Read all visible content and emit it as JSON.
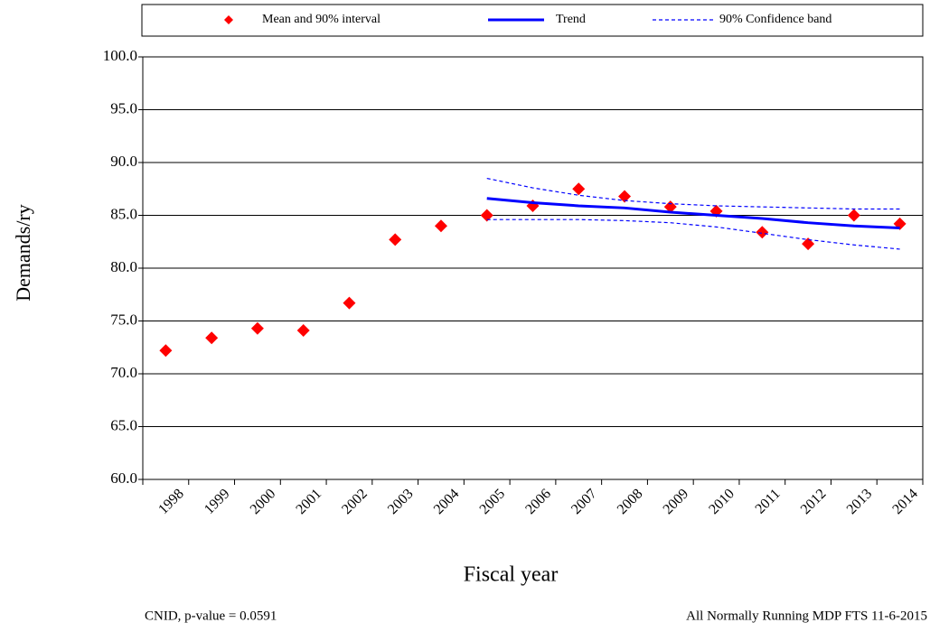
{
  "chart_data": {
    "type": "line",
    "x_label": "Fiscal year",
    "y_label": "Demands/ry",
    "footnote_left": "CNID, p-value = 0.0591",
    "footnote_right": "All Normally Running MDP FTS 11-6-2015",
    "categories": [
      "1998",
      "1999",
      "2000",
      "2001",
      "2002",
      "2003",
      "2004",
      "2005",
      "2006",
      "2007",
      "2008",
      "2009",
      "2010",
      "2011",
      "2012",
      "2013",
      "2014"
    ],
    "series": [
      {
        "name": "Mean and 90% interval",
        "color": "#ff0000",
        "style": "diamond",
        "values": [
          72.2,
          73.4,
          74.3,
          74.1,
          76.7,
          82.7,
          84.0,
          85.0,
          85.9,
          87.5,
          86.8,
          85.8,
          85.4,
          83.4,
          82.3,
          85.0,
          84.2
        ]
      },
      {
        "name": "Trend",
        "color": "#0000ff",
        "style": "solid",
        "values": [
          null,
          null,
          null,
          null,
          null,
          null,
          null,
          86.6,
          86.2,
          85.9,
          85.7,
          85.3,
          85.0,
          84.7,
          84.3,
          84.0,
          83.8
        ]
      },
      {
        "name": "90% Confidence band",
        "color": "#0000ff",
        "style": "dashed",
        "values": [
          null,
          null,
          null,
          null,
          null,
          null,
          null,
          88.5,
          87.6,
          86.9,
          86.4,
          86.1,
          85.9,
          85.8,
          85.7,
          85.6,
          85.6
        ],
        "values_lower": [
          null,
          null,
          null,
          null,
          null,
          null,
          null,
          84.6,
          84.6,
          84.6,
          84.5,
          84.3,
          83.9,
          83.3,
          82.7,
          82.2,
          81.8
        ]
      }
    ],
    "ylim": [
      60,
      100
    ],
    "yticks": [
      {
        "value": 60,
        "label": "60.0"
      },
      {
        "value": 65,
        "label": "65.0"
      },
      {
        "value": 70,
        "label": "70.0"
      },
      {
        "value": 75,
        "label": "75.0"
      },
      {
        "value": 80,
        "label": "80.0"
      },
      {
        "value": 85,
        "label": "85.0"
      },
      {
        "value": 90,
        "label": "90.0"
      },
      {
        "value": 95,
        "label": "95.0"
      },
      {
        "value": 100,
        "label": "100.0"
      }
    ],
    "grid": true,
    "legend": "top"
  }
}
